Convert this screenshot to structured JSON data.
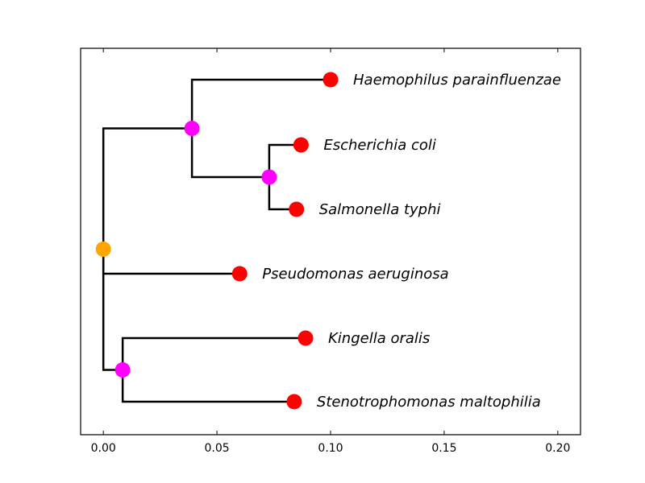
{
  "chart_data": {
    "type": "phylogenetic-tree",
    "title": "",
    "xlabel": "",
    "ylabel": "",
    "xlim": [
      -0.01,
      0.21
    ],
    "x_ticks": [
      0.0,
      0.05,
      0.1,
      0.15,
      0.2
    ],
    "x_tick_labels": [
      "0.00",
      "0.05",
      "0.10",
      "0.15",
      "0.20"
    ],
    "grid": false,
    "colors": {
      "root": "#FFA500",
      "internal": "#FF00FF",
      "leaf": "#FF0000",
      "branch": "#000000"
    },
    "nodes": [
      {
        "id": "root",
        "kind": "root",
        "x": 0.0
      },
      {
        "id": "n1",
        "kind": "internal",
        "x": 0.039,
        "parent": "root"
      },
      {
        "id": "n2",
        "kind": "internal",
        "x": 0.073,
        "parent": "n1"
      },
      {
        "id": "n3",
        "kind": "internal",
        "x": 0.0085,
        "parent": "root"
      },
      {
        "id": "haemophilus",
        "kind": "leaf",
        "label": "Haemophilus parainfluenzae",
        "x": 0.1,
        "parent": "n1"
      },
      {
        "id": "ecoli",
        "kind": "leaf",
        "label": "Escherichia coli",
        "x": 0.087,
        "parent": "n2"
      },
      {
        "id": "salmonella",
        "kind": "leaf",
        "label": "Salmonella typhi",
        "x": 0.085,
        "parent": "n2"
      },
      {
        "id": "pseudomonas",
        "kind": "leaf",
        "label": "Pseudomonas aeruginosa",
        "x": 0.06,
        "parent": "root"
      },
      {
        "id": "kingella",
        "kind": "leaf",
        "label": "Kingella oralis",
        "x": 0.089,
        "parent": "n3"
      },
      {
        "id": "stenotrophomonas",
        "kind": "leaf",
        "label": "Stenotrophomonas maltophilia",
        "x": 0.084,
        "parent": "n3"
      }
    ]
  }
}
